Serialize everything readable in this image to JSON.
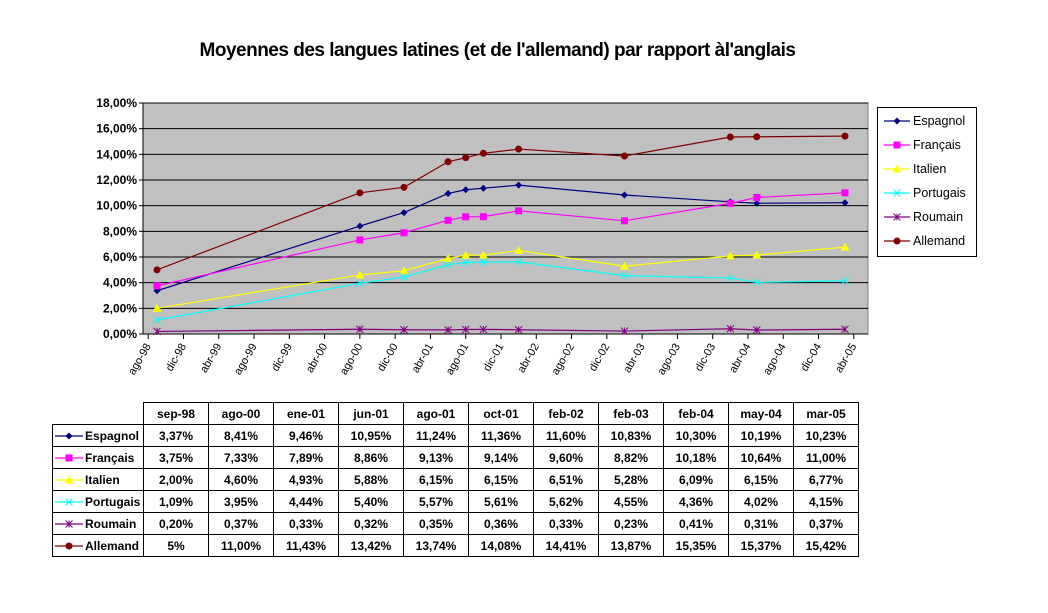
{
  "chart_data": {
    "type": "line",
    "title": "Moyennes des langues latines (et de l'allemand) par rapport àl'anglais",
    "xlabel": "",
    "ylabel": "",
    "ylim": [
      0,
      18
    ],
    "yticks": [
      "0,00%",
      "2,00%",
      "4,00%",
      "6,00%",
      "8,00%",
      "10,00%",
      "12,00%",
      "14,00%",
      "16,00%",
      "18,00%"
    ],
    "xticks": [
      "ago-98",
      "dic-98",
      "abr-99",
      "ago-99",
      "dic-99",
      "abr-00",
      "ago-00",
      "dic-00",
      "abr-01",
      "ago-01",
      "dic-01",
      "abr-02",
      "ago-02",
      "dic-02",
      "abr-03",
      "ago-03",
      "dic-03",
      "abr-04",
      "ago-04",
      "dic-04",
      "abr-05"
    ],
    "grid": true,
    "legend": "right",
    "categories": [
      "sep-98",
      "ago-00",
      "ene-01",
      "jun-01",
      "ago-01",
      "oct-01",
      "feb-02",
      "feb-03",
      "feb-04",
      "may-04",
      "mar-05"
    ],
    "months_since_aug98": [
      1,
      24,
      29,
      34,
      36,
      38,
      42,
      54,
      66,
      69,
      79
    ],
    "series": [
      {
        "name": "Espagnol",
        "color": "#000080",
        "marker": "diamond",
        "values": [
          3.37,
          8.41,
          9.46,
          10.95,
          11.24,
          11.36,
          11.6,
          10.83,
          10.3,
          10.19,
          10.23
        ],
        "labels": [
          "3,37%",
          "8,41%",
          "9,46%",
          "10,95%",
          "11,24%",
          "11,36%",
          "11,60%",
          "10,83%",
          "10,30%",
          "10,19%",
          "10,23%"
        ]
      },
      {
        "name": "Français",
        "color": "#ff00ff",
        "marker": "square",
        "values": [
          3.75,
          7.33,
          7.89,
          8.86,
          9.13,
          9.14,
          9.6,
          8.82,
          10.18,
          10.64,
          11.0
        ],
        "labels": [
          "3,75%",
          "7,33%",
          "7,89%",
          "8,86%",
          "9,13%",
          "9,14%",
          "9,60%",
          "8,82%",
          "10,18%",
          "10,64%",
          "11,00%"
        ]
      },
      {
        "name": "Italien",
        "color": "#ffff00",
        "marker": "triangle",
        "values": [
          2.0,
          4.6,
          4.93,
          5.88,
          6.15,
          6.15,
          6.51,
          5.28,
          6.09,
          6.15,
          6.77
        ],
        "labels": [
          "2,00%",
          "4,60%",
          "4,93%",
          "5,88%",
          "6,15%",
          "6,15%",
          "6,51%",
          "5,28%",
          "6,09%",
          "6,15%",
          "6,77%"
        ]
      },
      {
        "name": "Portugais",
        "color": "#00ffff",
        "marker": "x",
        "values": [
          1.09,
          3.95,
          4.44,
          5.4,
          5.57,
          5.61,
          5.62,
          4.55,
          4.36,
          4.02,
          4.15
        ],
        "labels": [
          "1,09%",
          "3,95%",
          "4,44%",
          "5,40%",
          "5,57%",
          "5,61%",
          "5,62%",
          "4,55%",
          "4,36%",
          "4,02%",
          "4,15%"
        ]
      },
      {
        "name": "Roumain",
        "color": "#800080",
        "marker": "star",
        "values": [
          0.2,
          0.37,
          0.33,
          0.32,
          0.35,
          0.36,
          0.33,
          0.23,
          0.41,
          0.31,
          0.37
        ],
        "labels": [
          "0,20%",
          "0,37%",
          "0,33%",
          "0,32%",
          "0,35%",
          "0,36%",
          "0,33%",
          "0,23%",
          "0,41%",
          "0,31%",
          "0,37%"
        ]
      },
      {
        "name": "Allemand",
        "color": "#800000",
        "marker": "circle",
        "values": [
          5,
          11.0,
          11.43,
          13.42,
          13.74,
          14.08,
          14.41,
          13.87,
          15.35,
          15.37,
          15.42
        ],
        "labels": [
          "5%",
          "11,00%",
          "11,43%",
          "13,42%",
          "13,74%",
          "14,08%",
          "14,41%",
          "13,87%",
          "15,35%",
          "15,37%",
          "15,42%"
        ]
      }
    ]
  }
}
